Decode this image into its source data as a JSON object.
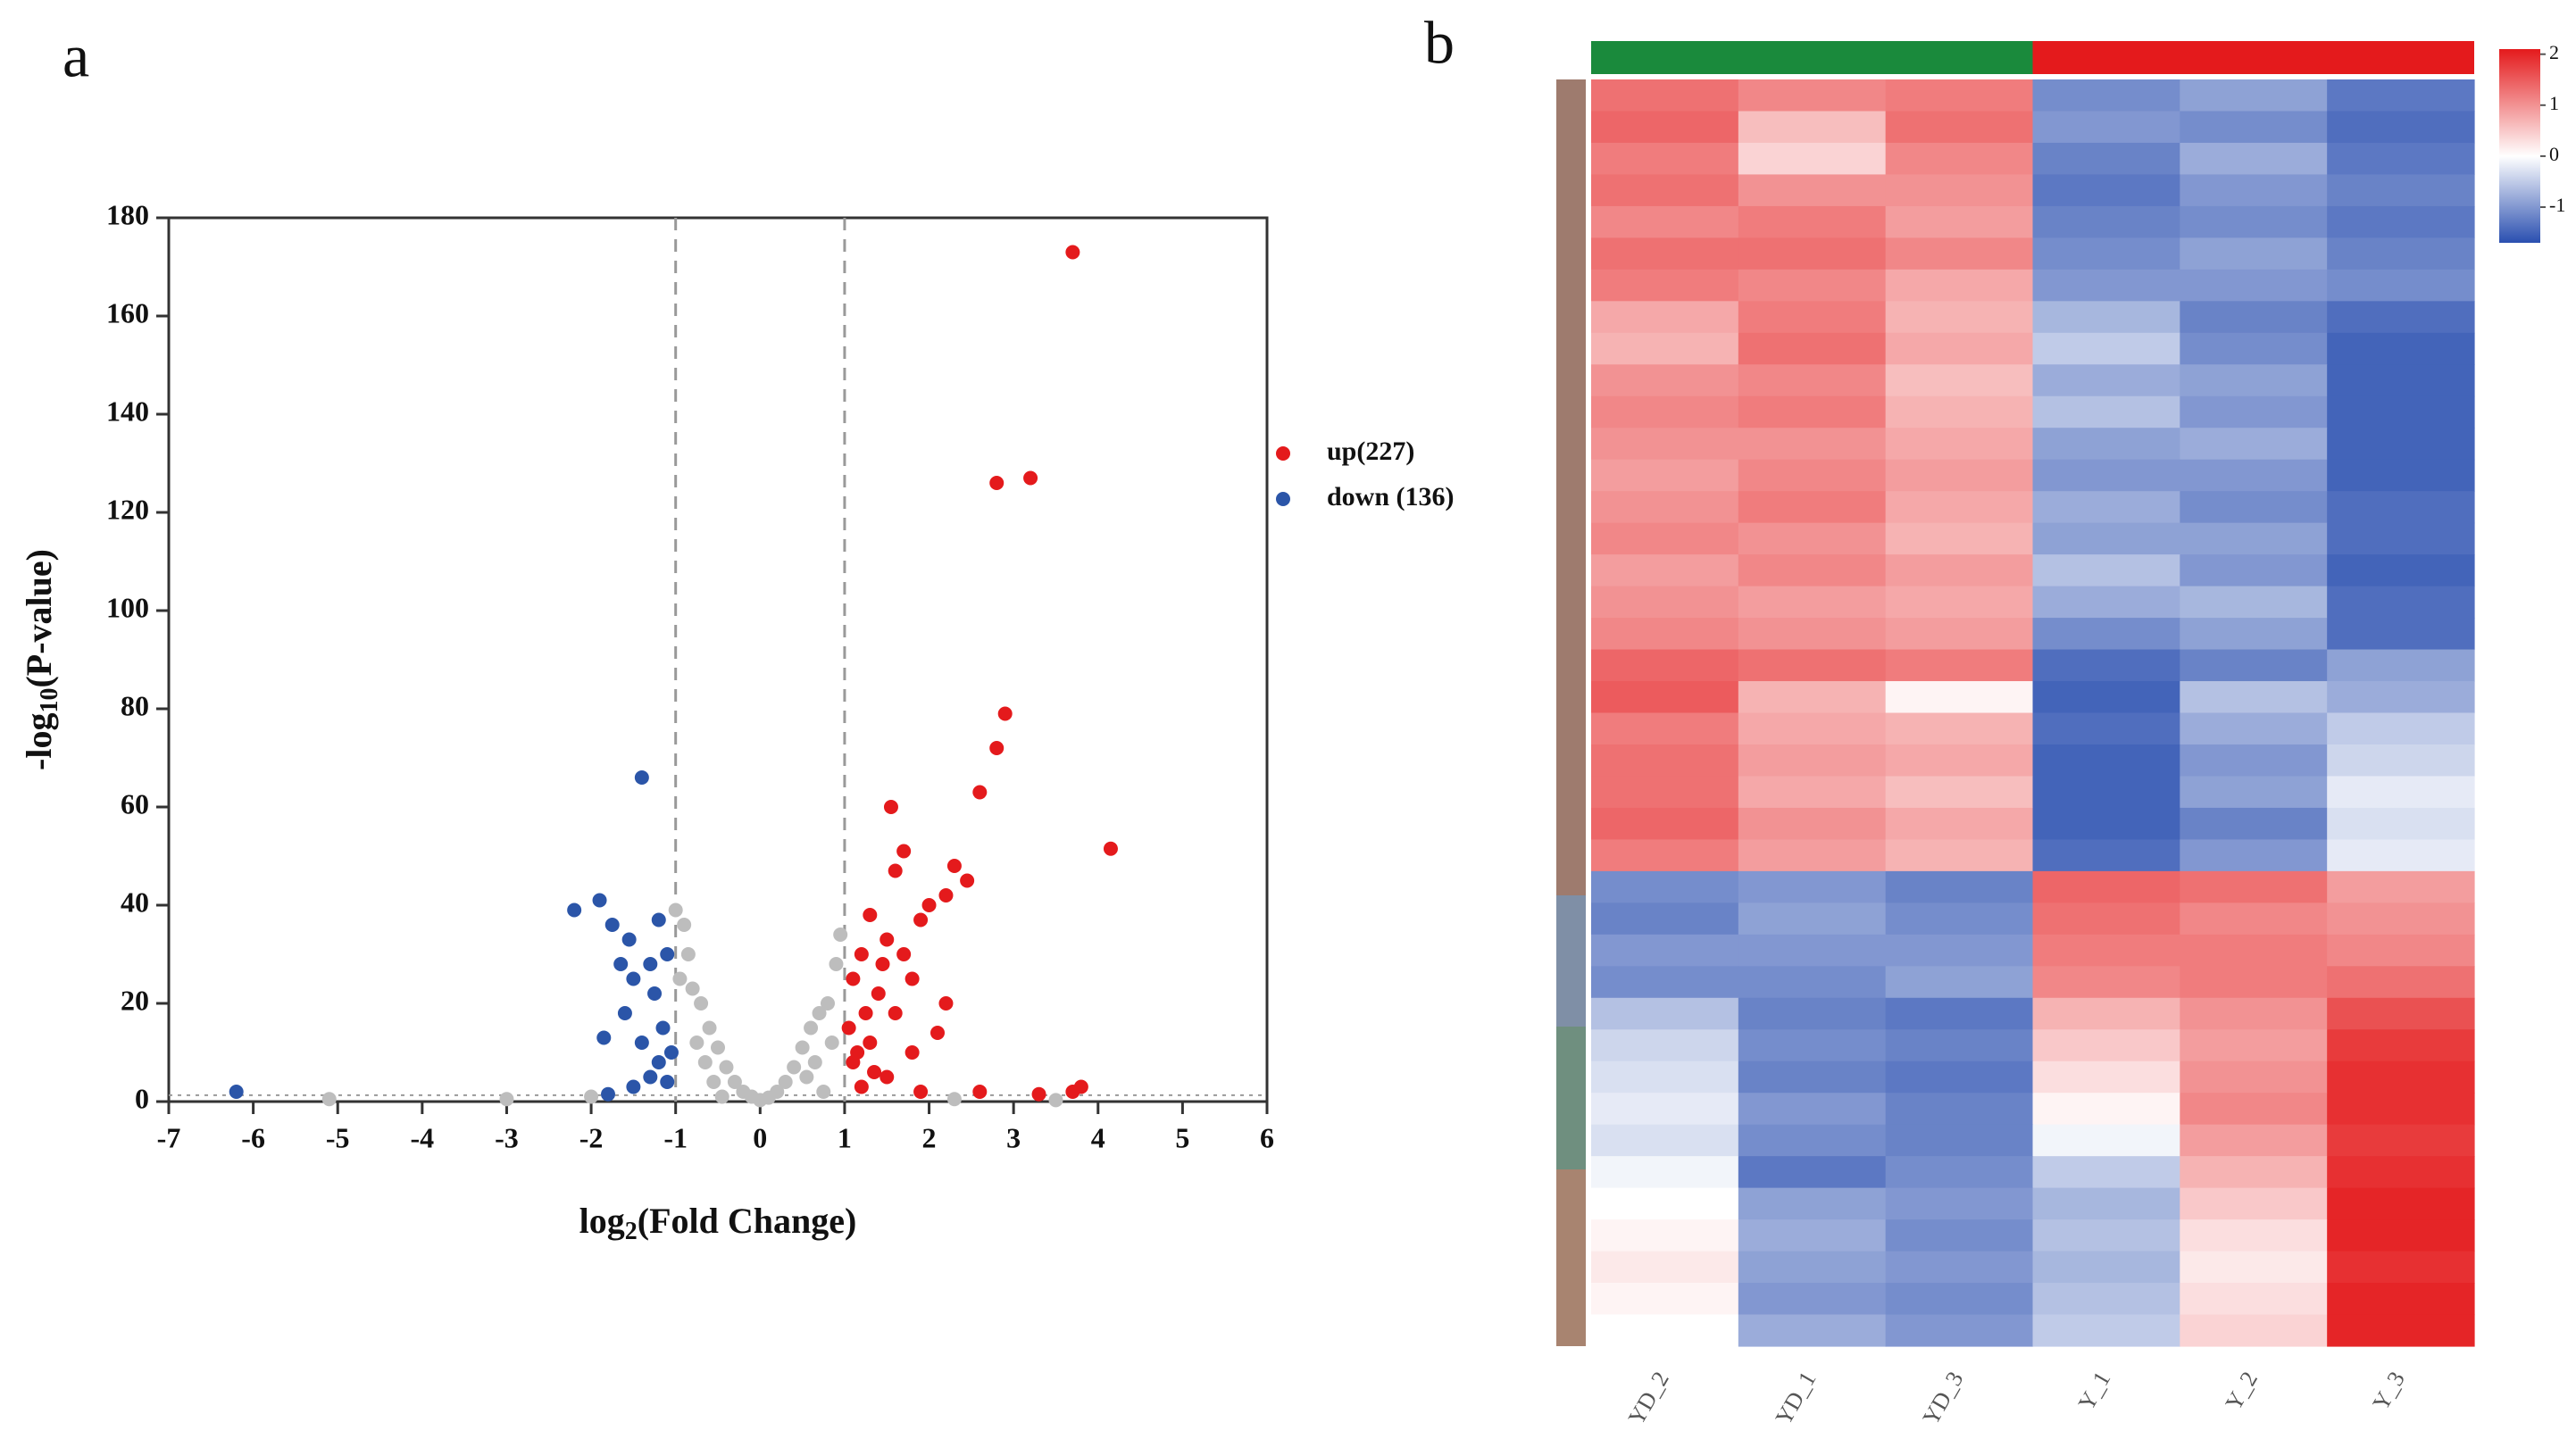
{
  "chart_data": [
    {
      "type": "scatter",
      "panel_label": "a",
      "x_label": {
        "text": "log",
        "sub": "2",
        "rest": "(Fold Change)"
      },
      "y_label": {
        "text": "-log",
        "sub": "10",
        "rest": "(P-value)"
      },
      "xlim": [
        -7,
        6
      ],
      "xticks": [
        -7,
        -6,
        -5,
        -4,
        -3,
        -2,
        -1,
        0,
        1,
        2,
        3,
        4,
        5,
        6
      ],
      "ylim": [
        0,
        180
      ],
      "yticks": [
        0,
        20,
        40,
        60,
        80,
        100,
        120,
        140,
        160,
        180
      ],
      "vlines": [
        -1,
        1
      ],
      "hline": 1.3,
      "legend": "right",
      "series": [
        {
          "name": null,
          "color": "#bdbdbd",
          "x": [
            -1,
            -0.9,
            -0.85,
            -0.8,
            -0.7,
            -0.6,
            -0.5,
            -0.4,
            -0.3,
            -0.2,
            -0.1,
            0,
            0.1,
            0.2,
            0.3,
            0.4,
            0.5,
            0.6,
            0.7,
            0.8,
            0.9,
            0.95,
            -0.95,
            -0.75,
            -0.65,
            0.65,
            0.85,
            -3,
            -5.1,
            -2.0,
            2.3,
            3.5,
            -0.55,
            0.55,
            0.75,
            -0.45
          ],
          "values": [
            39,
            36,
            30,
            23,
            20,
            15,
            11,
            7,
            4,
            2,
            1,
            0.3,
            0.8,
            2,
            4,
            7,
            11,
            15,
            18,
            20,
            28,
            34,
            25,
            12,
            8,
            8,
            12,
            0.5,
            0.5,
            1,
            0.5,
            0.3,
            4,
            5,
            2,
            1
          ]
        },
        {
          "name": "up(227)",
          "color": "#e41a1c",
          "x": [
            3.7,
            2.8,
            3.2,
            2.9,
            2.8,
            2.6,
            1.55,
            4.15,
            3.8,
            3.7,
            1.7,
            1.6,
            2.3,
            2.2,
            2.45,
            1.9,
            1.3,
            2.0,
            1.5,
            1.2,
            1.1,
            1.4,
            1.8,
            1.6,
            2.2,
            1.3,
            1.1,
            1.5,
            1.9,
            1.2,
            1.05,
            1.7,
            2.1,
            1.25,
            1.45,
            1.15,
            1.35,
            1.8,
            2.6,
            3.3
          ],
          "values": [
            173,
            126,
            127,
            79,
            72,
            63,
            60,
            51.5,
            3,
            2,
            51,
            47,
            48,
            42,
            45,
            37,
            38,
            40,
            33,
            30,
            25,
            22,
            25,
            18,
            20,
            12,
            8,
            5,
            2,
            3,
            15,
            30,
            14,
            18,
            28,
            10,
            6,
            10,
            2,
            1.5
          ]
        },
        {
          "name": "down (136)",
          "color": "#2b55a8",
          "x": [
            -6.2,
            -1.4,
            -2.2,
            -1.9,
            -1.75,
            -1.55,
            -1.2,
            -1.3,
            -1.1,
            -1.5,
            -1.25,
            -1.15,
            -1.6,
            -1.85,
            -1.4,
            -1.05,
            -1.2,
            -1.3,
            -1.5,
            -1.8,
            -1.1,
            -1.65
          ],
          "values": [
            2,
            66,
            39,
            41,
            36,
            33,
            37,
            28,
            30,
            25,
            22,
            15,
            18,
            13,
            12,
            10,
            8,
            5,
            3,
            1.5,
            4,
            28
          ]
        }
      ]
    },
    {
      "type": "heatmap",
      "panel_label": "b",
      "categories": [
        "YD_2",
        "YD_1",
        "YD_3",
        "Y_1",
        "Y_2",
        "Y_3"
      ],
      "group_colors": [
        "#1a8a3c",
        "#e41a1c"
      ],
      "colorscale": [
        "#2a4fb0",
        "#ffffff",
        "#e41a1c"
      ],
      "zlim": [
        -1.7,
        2.1
      ],
      "zticks": [
        2,
        1,
        0,
        -1
      ],
      "values": [
        [
          1.3,
          1.1,
          1.2,
          -1.1,
          -0.9,
          -1.3
        ],
        [
          1.4,
          0.6,
          1.3,
          -1.0,
          -1.1,
          -1.4
        ],
        [
          1.2,
          0.4,
          1.1,
          -1.2,
          -0.8,
          -1.3
        ],
        [
          1.3,
          1.0,
          1.0,
          -1.3,
          -1.0,
          -1.2
        ],
        [
          1.1,
          1.2,
          0.9,
          -1.2,
          -1.1,
          -1.3
        ],
        [
          1.3,
          1.3,
          1.1,
          -1.1,
          -0.9,
          -1.2
        ],
        [
          1.2,
          1.1,
          0.8,
          -1.0,
          -1.0,
          -1.1
        ],
        [
          0.8,
          1.2,
          0.7,
          -0.7,
          -1.2,
          -1.4
        ],
        [
          0.7,
          1.3,
          0.8,
          -0.5,
          -1.1,
          -1.5
        ],
        [
          1.0,
          1.1,
          0.6,
          -0.8,
          -0.9,
          -1.5
        ],
        [
          1.1,
          1.2,
          0.7,
          -0.6,
          -1.0,
          -1.5
        ],
        [
          1.0,
          1.0,
          0.8,
          -0.9,
          -0.8,
          -1.5
        ],
        [
          0.9,
          1.1,
          0.9,
          -1.0,
          -1.0,
          -1.5
        ],
        [
          1.0,
          1.2,
          0.8,
          -0.8,
          -1.1,
          -1.4
        ],
        [
          1.1,
          1.0,
          0.7,
          -0.9,
          -0.9,
          -1.4
        ],
        [
          0.9,
          1.1,
          0.9,
          -0.6,
          -1.0,
          -1.5
        ],
        [
          1.0,
          0.9,
          0.8,
          -0.8,
          -0.7,
          -1.4
        ],
        [
          1.1,
          1.0,
          0.9,
          -1.1,
          -0.9,
          -1.4
        ],
        [
          1.4,
          1.3,
          1.2,
          -1.4,
          -1.2,
          -0.9
        ],
        [
          1.5,
          0.7,
          0.1,
          -1.5,
          -0.6,
          -0.8
        ],
        [
          1.2,
          0.8,
          0.7,
          -1.4,
          -0.8,
          -0.5
        ],
        [
          1.3,
          0.9,
          0.8,
          -1.5,
          -1.0,
          -0.4
        ],
        [
          1.3,
          0.8,
          0.6,
          -1.5,
          -0.9,
          -0.2
        ],
        [
          1.4,
          1.0,
          0.8,
          -1.5,
          -1.2,
          -0.3
        ],
        [
          1.2,
          0.9,
          0.7,
          -1.4,
          -1.0,
          -0.2
        ],
        [
          -1.1,
          -1.0,
          -1.2,
          1.4,
          1.3,
          0.9
        ],
        [
          -1.2,
          -0.9,
          -1.1,
          1.3,
          1.1,
          1.0
        ],
        [
          -1.0,
          -1.0,
          -1.0,
          1.2,
          1.2,
          1.1
        ],
        [
          -1.1,
          -1.1,
          -0.9,
          1.1,
          1.2,
          1.3
        ],
        [
          -0.6,
          -1.2,
          -1.3,
          0.7,
          1.0,
          1.6
        ],
        [
          -0.4,
          -1.1,
          -1.2,
          0.5,
          0.9,
          1.8
        ],
        [
          -0.3,
          -1.2,
          -1.3,
          0.3,
          1.0,
          1.9
        ],
        [
          -0.2,
          -1.0,
          -1.2,
          0.1,
          1.1,
          1.9
        ],
        [
          -0.3,
          -1.1,
          -1.2,
          -0.1,
          0.9,
          1.8
        ],
        [
          -0.1,
          -1.3,
          -1.1,
          -0.5,
          0.7,
          1.9
        ],
        [
          0.0,
          -0.9,
          -1.0,
          -0.7,
          0.5,
          2.0
        ],
        [
          0.1,
          -0.8,
          -1.1,
          -0.6,
          0.3,
          2.0
        ],
        [
          0.2,
          -0.9,
          -1.0,
          -0.7,
          0.2,
          1.9
        ],
        [
          0.1,
          -1.0,
          -1.1,
          -0.6,
          0.3,
          2.0
        ],
        [
          0.0,
          -0.8,
          -1.0,
          -0.5,
          0.4,
          2.0
        ]
      ]
    }
  ]
}
